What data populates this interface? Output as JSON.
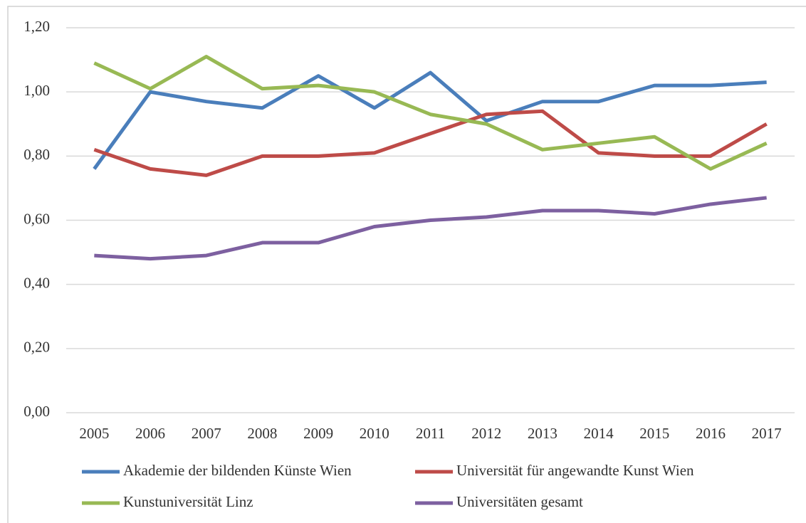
{
  "chart_data": {
    "type": "line",
    "categories": [
      "2005",
      "2006",
      "2007",
      "2008",
      "2009",
      "2010",
      "2011",
      "2012",
      "2013",
      "2014",
      "2015",
      "2016",
      "2017"
    ],
    "series": [
      {
        "name": "Akademie der bildenden Künste Wien",
        "color": "#4a7ebb",
        "values": [
          0.76,
          1.0,
          0.97,
          0.95,
          1.05,
          0.95,
          1.06,
          0.91,
          0.97,
          0.97,
          1.02,
          1.02,
          1.03
        ]
      },
      {
        "name": "Universität für angewandte Kunst Wien",
        "color": "#be4b48",
        "values": [
          0.82,
          0.76,
          0.74,
          0.8,
          0.8,
          0.81,
          0.87,
          0.93,
          0.94,
          0.81,
          0.8,
          0.8,
          0.9
        ]
      },
      {
        "name": "Kunstuniversität Linz",
        "color": "#98b954",
        "values": [
          1.09,
          1.01,
          1.11,
          1.01,
          1.02,
          1.0,
          0.93,
          0.9,
          0.82,
          0.84,
          0.86,
          0.76,
          0.84
        ]
      },
      {
        "name": "Universitäten gesamt",
        "color": "#7d60a0",
        "values": [
          0.49,
          0.48,
          0.49,
          0.53,
          0.53,
          0.58,
          0.6,
          0.61,
          0.63,
          0.63,
          0.62,
          0.65,
          0.67
        ]
      }
    ],
    "ylim": [
      0,
      1.2
    ],
    "yticks": [
      {
        "value": 0,
        "label": "0,00"
      },
      {
        "value": 0.2,
        "label": "0,20"
      },
      {
        "value": 0.4,
        "label": "0,40"
      },
      {
        "value": 0.6,
        "label": "0,60"
      },
      {
        "value": 0.8,
        "label": "0,80"
      },
      {
        "value": 1.0,
        "label": "1,00"
      },
      {
        "value": 1.2,
        "label": "1,20"
      }
    ],
    "grid": true
  }
}
